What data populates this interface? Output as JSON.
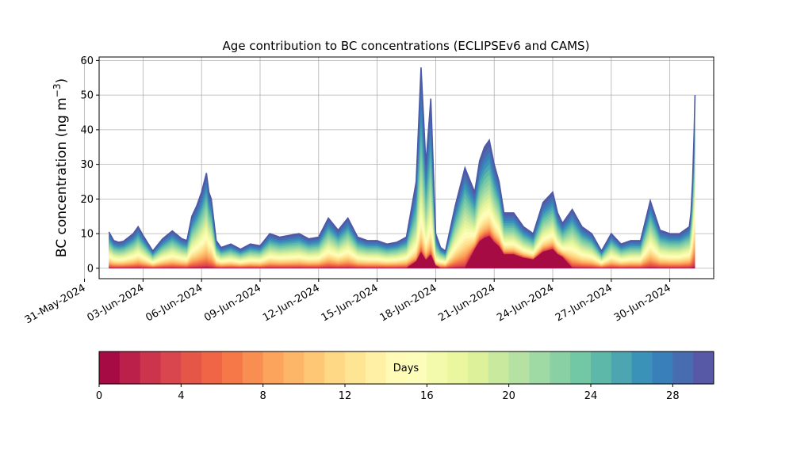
{
  "chart_data": {
    "type": "area",
    "title": "Age contribution to BC concentrations (ECLIPSEv6 and CAMS)",
    "ylabel": "BC concentration (ng m$^{-3}$)",
    "xlabel": "",
    "ylim": [
      -3,
      61
    ],
    "xlim": [
      "2024-05-31T18:00",
      "2024-07-02T06:00"
    ],
    "yticks": [
      0,
      10,
      20,
      30,
      40,
      50,
      60
    ],
    "xtick_dates": [
      "2024-05-31",
      "2024-06-03",
      "2024-06-06",
      "2024-06-09",
      "2024-06-12",
      "2024-06-15",
      "2024-06-18",
      "2024-06-21",
      "2024-06-24",
      "2024-06-27",
      "2024-06-30"
    ],
    "xtick_labels": [
      "31-May-2024",
      "03-Jun-2024",
      "06-Jun-2024",
      "09-Jun-2024",
      "12-Jun-2024",
      "15-Jun-2024",
      "18-Jun-2024",
      "21-Jun-2024",
      "24-Jun-2024",
      "27-Jun-2024",
      "30-Jun-2024"
    ],
    "grid": true,
    "total_series": {
      "name": "total",
      "dates": [
        "2024-06-01T06:00",
        "2024-06-01T12:00",
        "2024-06-01T18:00",
        "2024-06-02T00:00",
        "2024-06-02T12:00",
        "2024-06-02T18:00",
        "2024-06-03T00:00",
        "2024-06-03T12:00",
        "2024-06-04T00:00",
        "2024-06-04T12:00",
        "2024-06-05T00:00",
        "2024-06-05T06:00",
        "2024-06-05T12:00",
        "2024-06-05T18:00",
        "2024-06-06T00:00",
        "2024-06-06T06:00",
        "2024-06-06T09:00",
        "2024-06-06T12:00",
        "2024-06-06T18:00",
        "2024-06-07T00:00",
        "2024-06-07T12:00",
        "2024-06-08T00:00",
        "2024-06-08T12:00",
        "2024-06-09T00:00",
        "2024-06-09T12:00",
        "2024-06-10T00:00",
        "2024-06-10T12:00",
        "2024-06-11T00:00",
        "2024-06-11T12:00",
        "2024-06-12T00:00",
        "2024-06-12T12:00",
        "2024-06-13T00:00",
        "2024-06-13T12:00",
        "2024-06-14T00:00",
        "2024-06-14T12:00",
        "2024-06-15T00:00",
        "2024-06-15T12:00",
        "2024-06-16T00:00",
        "2024-06-16T12:00",
        "2024-06-17T00:00",
        "2024-06-17T06:00",
        "2024-06-17T12:00",
        "2024-06-17T18:00",
        "2024-06-18T00:00",
        "2024-06-18T06:00",
        "2024-06-18T12:00",
        "2024-06-19T00:00",
        "2024-06-19T12:00",
        "2024-06-20T00:00",
        "2024-06-20T06:00",
        "2024-06-20T12:00",
        "2024-06-20T18:00",
        "2024-06-21T00:00",
        "2024-06-21T06:00",
        "2024-06-21T12:00",
        "2024-06-22T00:00",
        "2024-06-22T12:00",
        "2024-06-23T00:00",
        "2024-06-23T12:00",
        "2024-06-24T00:00",
        "2024-06-24T06:00",
        "2024-06-24T12:00",
        "2024-06-25T00:00",
        "2024-06-25T12:00",
        "2024-06-26T00:00",
        "2024-06-26T12:00",
        "2024-06-27T00:00",
        "2024-06-27T12:00",
        "2024-06-28T00:00",
        "2024-06-28T12:00",
        "2024-06-29T00:00",
        "2024-06-29T12:00",
        "2024-06-30T00:00",
        "2024-06-30T12:00",
        "2024-07-01T00:00",
        "2024-07-01T02:00",
        "2024-07-01T04:00",
        "2024-07-01T06:00",
        "2024-07-01T07:00"
      ],
      "values": [
        10.5,
        8.0,
        7.5,
        7.8,
        10.0,
        12.0,
        9.5,
        5.0,
        8.5,
        10.8,
        8.5,
        8.0,
        15.0,
        18.0,
        22.0,
        27.5,
        22.0,
        20.0,
        8.0,
        6.0,
        7.0,
        5.5,
        7.0,
        6.5,
        10.0,
        9.0,
        9.5,
        10.0,
        8.5,
        9.0,
        14.5,
        11.0,
        14.5,
        9.0,
        8.0,
        8.0,
        7.0,
        7.5,
        9.0,
        25.0,
        58.0,
        30.0,
        49.0,
        10.0,
        6.0,
        5.0,
        18.0,
        29.0,
        22.0,
        31.0,
        35.0,
        37.0,
        30.0,
        25.0,
        16.0,
        16.0,
        12.0,
        10.0,
        19.0,
        22.0,
        16.0,
        13.0,
        17.0,
        12.0,
        10.0,
        5.0,
        10.0,
        7.0,
        8.0,
        8.0,
        19.5,
        11.0,
        10.0,
        10.0,
        12.0,
        16.0,
        25.0,
        40.0,
        50.0
      ]
    },
    "colormap": "Spectral",
    "colorbar": {
      "label": "Days",
      "range": [
        0,
        30
      ],
      "n_levels": 30,
      "ticks": [
        0,
        4,
        8,
        12,
        16,
        20,
        24,
        28
      ]
    }
  }
}
